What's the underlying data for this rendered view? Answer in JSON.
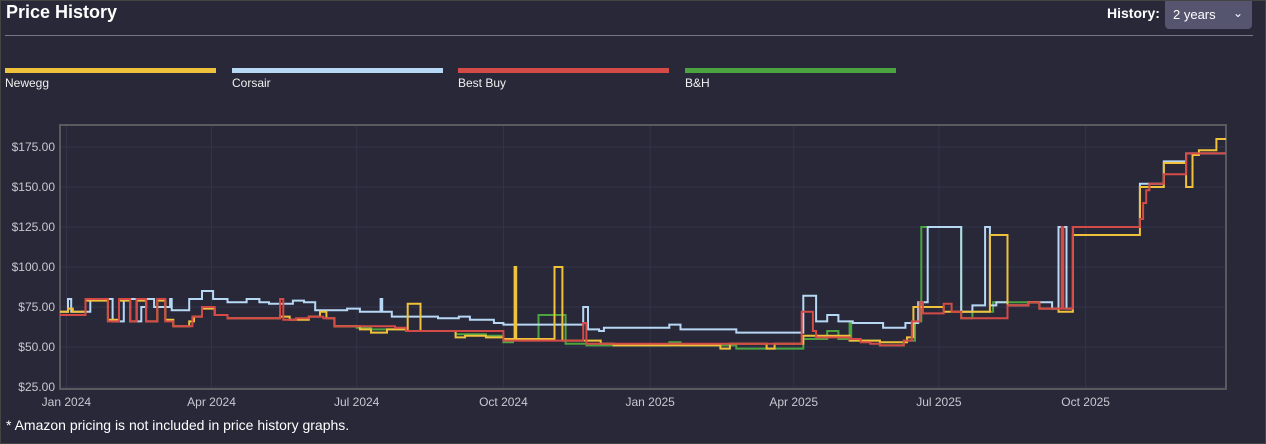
{
  "header": {
    "title": "Price History",
    "history_label": "History:",
    "history_value": "2 years",
    "chevron": "chevron-down-icon"
  },
  "footnote": "* Amazon pricing is not included in price history graphs.",
  "chart_data": {
    "type": "line",
    "step": true,
    "title": "",
    "xlabel": "",
    "ylabel": "",
    "xlim": [
      "2023-12-28",
      "2025-12-28"
    ],
    "ylim": [
      23.75,
      188.75
    ],
    "grid": true,
    "legend": "top",
    "x_ticks": [
      {
        "date": "2024-01-01",
        "label": "Jan 2024"
      },
      {
        "date": "2024-04-01",
        "label": "Apr 2024"
      },
      {
        "date": "2024-07-01",
        "label": "Jul 2024"
      },
      {
        "date": "2024-10-01",
        "label": "Oct 2024"
      },
      {
        "date": "2025-01-01",
        "label": "Jan 2025"
      },
      {
        "date": "2025-04-01",
        "label": "Apr 2025"
      },
      {
        "date": "2025-07-01",
        "label": "Jul 2025"
      },
      {
        "date": "2025-10-01",
        "label": "Oct 2025"
      }
    ],
    "y_ticks": [
      {
        "value": 25,
        "label": "$25.00"
      },
      {
        "value": 50,
        "label": "$50.00"
      },
      {
        "value": 75,
        "label": "$75.00"
      },
      {
        "value": 100,
        "label": "$100.00"
      },
      {
        "value": 125,
        "label": "$125.00"
      },
      {
        "value": 150,
        "label": "$150.00"
      },
      {
        "value": 175,
        "label": "$175.00"
      }
    ],
    "series": [
      {
        "name": "Newegg",
        "color": "#f0c23b",
        "points": [
          [
            "2023-12-28",
            72
          ],
          [
            "2024-01-02",
            74
          ],
          [
            "2024-01-05",
            72
          ],
          [
            "2024-01-13",
            79
          ],
          [
            "2024-01-27",
            67
          ],
          [
            "2024-02-03",
            79
          ],
          [
            "2024-02-10",
            66
          ],
          [
            "2024-02-14",
            79
          ],
          [
            "2024-02-20",
            66
          ],
          [
            "2024-02-27",
            79
          ],
          [
            "2024-03-03",
            67
          ],
          [
            "2024-03-08",
            63
          ],
          [
            "2024-03-18",
            66
          ],
          [
            "2024-03-21",
            69
          ],
          [
            "2024-03-26",
            74
          ],
          [
            "2024-04-03",
            70
          ],
          [
            "2024-04-11",
            68
          ],
          [
            "2024-05-14",
            69
          ],
          [
            "2024-05-20",
            67
          ],
          [
            "2024-06-01",
            69
          ],
          [
            "2024-06-08",
            72
          ],
          [
            "2024-06-12",
            68
          ],
          [
            "2024-06-17",
            63
          ],
          [
            "2024-07-03",
            61
          ],
          [
            "2024-07-10",
            59
          ],
          [
            "2024-07-20",
            61
          ],
          [
            "2024-08-02",
            77
          ],
          [
            "2024-08-10",
            60
          ],
          [
            "2024-09-01",
            56
          ],
          [
            "2024-09-07",
            57
          ],
          [
            "2024-09-20",
            56
          ],
          [
            "2024-10-01",
            55
          ],
          [
            "2024-10-08",
            100
          ],
          [
            "2024-10-09",
            55
          ],
          [
            "2024-11-02",
            100
          ],
          [
            "2024-11-07",
            54
          ],
          [
            "2024-12-01",
            52
          ],
          [
            "2024-12-09",
            51
          ],
          [
            "2025-02-14",
            49
          ],
          [
            "2025-02-20",
            52
          ],
          [
            "2025-03-15",
            49
          ],
          [
            "2025-03-20",
            52
          ],
          [
            "2025-04-07",
            57
          ],
          [
            "2025-05-06",
            54
          ],
          [
            "2025-05-25",
            53
          ],
          [
            "2025-06-11",
            56
          ],
          [
            "2025-06-15",
            75
          ],
          [
            "2025-07-04",
            72
          ],
          [
            "2025-08-02",
            120
          ],
          [
            "2025-08-13",
            76
          ],
          [
            "2025-08-26",
            78
          ],
          [
            "2025-09-02",
            74
          ],
          [
            "2025-09-14",
            72
          ],
          [
            "2025-09-23",
            120
          ],
          [
            "2025-11-04",
            150
          ],
          [
            "2025-11-19",
            165
          ],
          [
            "2025-12-03",
            150
          ],
          [
            "2025-12-07",
            170
          ],
          [
            "2025-12-11",
            173
          ],
          [
            "2025-12-22",
            180
          ],
          [
            "2025-12-28",
            180
          ]
        ]
      },
      {
        "name": "Corsair",
        "color": "#b7d8f5",
        "points": [
          [
            "2023-12-28",
            72
          ],
          [
            "2024-01-02",
            80
          ],
          [
            "2024-01-04",
            72
          ],
          [
            "2024-01-16",
            80
          ],
          [
            "2024-01-30",
            66
          ],
          [
            "2024-02-06",
            80
          ],
          [
            "2024-02-14",
            66
          ],
          [
            "2024-02-17",
            75
          ],
          [
            "2024-02-20",
            80
          ],
          [
            "2024-02-25",
            75
          ],
          [
            "2024-03-06",
            80
          ],
          [
            "2024-03-07",
            73
          ],
          [
            "2024-03-18",
            80
          ],
          [
            "2024-03-26",
            85
          ],
          [
            "2024-04-02",
            80
          ],
          [
            "2024-04-11",
            78
          ],
          [
            "2024-04-23",
            80
          ],
          [
            "2024-05-01",
            78
          ],
          [
            "2024-05-07",
            77
          ],
          [
            "2024-05-22",
            79
          ],
          [
            "2024-05-29",
            78
          ],
          [
            "2024-06-05",
            73
          ],
          [
            "2024-06-25",
            74
          ],
          [
            "2024-07-03",
            72
          ],
          [
            "2024-07-16",
            80
          ],
          [
            "2024-07-17",
            72
          ],
          [
            "2024-07-23",
            69
          ],
          [
            "2024-08-21",
            68
          ],
          [
            "2024-09-03",
            69
          ],
          [
            "2024-09-10",
            67
          ],
          [
            "2024-09-25",
            65
          ],
          [
            "2024-10-01",
            64
          ],
          [
            "2024-11-20",
            75
          ],
          [
            "2024-11-23",
            61
          ],
          [
            "2024-11-30",
            60
          ],
          [
            "2024-12-03",
            62
          ],
          [
            "2025-01-13",
            64
          ],
          [
            "2025-01-20",
            61
          ],
          [
            "2025-02-24",
            59
          ],
          [
            "2025-04-07",
            82
          ],
          [
            "2025-04-15",
            66
          ],
          [
            "2025-04-22",
            70
          ],
          [
            "2025-04-29",
            66
          ],
          [
            "2025-05-08",
            65
          ],
          [
            "2025-05-27",
            62
          ],
          [
            "2025-06-10",
            65
          ],
          [
            "2025-06-18",
            78
          ],
          [
            "2025-06-24",
            125
          ],
          [
            "2025-07-15",
            72
          ],
          [
            "2025-07-22",
            76
          ],
          [
            "2025-07-30",
            125
          ],
          [
            "2025-08-02",
            76
          ],
          [
            "2025-08-06",
            78
          ],
          [
            "2025-08-13",
            76
          ],
          [
            "2025-08-26",
            78
          ],
          [
            "2025-09-10",
            74
          ],
          [
            "2025-09-14",
            125
          ],
          [
            "2025-09-19",
            74
          ],
          [
            "2025-09-23",
            125
          ],
          [
            "2025-11-04",
            152
          ],
          [
            "2025-11-19",
            166
          ],
          [
            "2025-12-03",
            171
          ],
          [
            "2025-12-28",
            171
          ]
        ]
      },
      {
        "name": "Best Buy",
        "color": "#d34a47",
        "points": [
          [
            "2023-12-28",
            70
          ],
          [
            "2024-01-13",
            80
          ],
          [
            "2024-01-27",
            66
          ],
          [
            "2024-02-03",
            80
          ],
          [
            "2024-02-10",
            66
          ],
          [
            "2024-02-14",
            80
          ],
          [
            "2024-02-20",
            66
          ],
          [
            "2024-02-27",
            80
          ],
          [
            "2024-03-03",
            66
          ],
          [
            "2024-03-08",
            63
          ],
          [
            "2024-03-20",
            69
          ],
          [
            "2024-03-26",
            75
          ],
          [
            "2024-04-03",
            70
          ],
          [
            "2024-04-11",
            68
          ],
          [
            "2024-05-14",
            80
          ],
          [
            "2024-05-16",
            67
          ],
          [
            "2024-05-24",
            68
          ],
          [
            "2024-06-01",
            69
          ],
          [
            "2024-06-10",
            68
          ],
          [
            "2024-06-17",
            63
          ],
          [
            "2024-07-25",
            62
          ],
          [
            "2024-08-01",
            60
          ],
          [
            "2024-10-01",
            54
          ],
          [
            "2024-11-20",
            65
          ],
          [
            "2024-11-22",
            52
          ],
          [
            "2025-04-06",
            72
          ],
          [
            "2025-04-13",
            60
          ],
          [
            "2025-04-15",
            56
          ],
          [
            "2025-05-06",
            55
          ],
          [
            "2025-05-13",
            53
          ],
          [
            "2025-05-19",
            52
          ],
          [
            "2025-05-25",
            51
          ],
          [
            "2025-06-09",
            54
          ],
          [
            "2025-06-14",
            66
          ],
          [
            "2025-06-19",
            78
          ],
          [
            "2025-06-21",
            71
          ],
          [
            "2025-07-04",
            77
          ],
          [
            "2025-07-09",
            72
          ],
          [
            "2025-07-15",
            68
          ],
          [
            "2025-08-13",
            76
          ],
          [
            "2025-08-26",
            78
          ],
          [
            "2025-09-02",
            74
          ],
          [
            "2025-09-16",
            125
          ],
          [
            "2025-09-17",
            74
          ],
          [
            "2025-09-23",
            125
          ],
          [
            "2025-11-04",
            130
          ],
          [
            "2025-11-06",
            140
          ],
          [
            "2025-11-08",
            148
          ],
          [
            "2025-11-10",
            152
          ],
          [
            "2025-11-19",
            158
          ],
          [
            "2025-12-03",
            171
          ],
          [
            "2025-12-28",
            171
          ]
        ]
      },
      {
        "name": "B&H",
        "color": "#4ca441",
        "points": [
          [
            "2024-06-17",
            63
          ],
          [
            "2024-07-01",
            62
          ],
          [
            "2024-07-10",
            61
          ],
          [
            "2024-08-01",
            60
          ],
          [
            "2024-09-01",
            58
          ],
          [
            "2024-09-20",
            57
          ],
          [
            "2024-10-01",
            53
          ],
          [
            "2024-10-07",
            55
          ],
          [
            "2024-10-11",
            54
          ],
          [
            "2024-10-23",
            70
          ],
          [
            "2024-11-09",
            52
          ],
          [
            "2024-11-22",
            51
          ],
          [
            "2025-01-13",
            53
          ],
          [
            "2025-01-20",
            51
          ],
          [
            "2025-02-24",
            49
          ],
          [
            "2025-04-07",
            55
          ],
          [
            "2025-04-22",
            60
          ],
          [
            "2025-04-29",
            55
          ],
          [
            "2025-05-06",
            66
          ],
          [
            "2025-05-07",
            54
          ],
          [
            "2025-05-25",
            51
          ],
          [
            "2025-06-09",
            54
          ],
          [
            "2025-06-16",
            66
          ],
          [
            "2025-06-20",
            125
          ],
          [
            "2025-07-15",
            68
          ],
          [
            "2025-07-22",
            72
          ],
          [
            "2025-08-04",
            78
          ],
          [
            "2025-08-26",
            78
          ],
          [
            "2025-09-02",
            76
          ]
        ]
      }
    ]
  }
}
